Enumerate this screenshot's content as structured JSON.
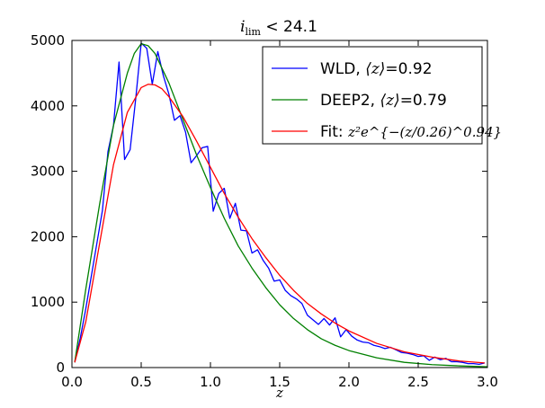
{
  "chart_data": {
    "type": "line",
    "title": {
      "math": "i",
      "math_sub": "lim",
      "op": " < ",
      "value": "24.1"
    },
    "xlabel": "z",
    "ylabel": "",
    "xlim": [
      0.0,
      3.0
    ],
    "ylim": [
      0,
      5000
    ],
    "xticks": [
      "0.0",
      "0.5",
      "1.0",
      "1.5",
      "2.0",
      "2.5",
      "3.0"
    ],
    "yticks": [
      "0",
      "1000",
      "2000",
      "3000",
      "4000",
      "5000"
    ],
    "legend_position": "top-right",
    "series": [
      {
        "name": "WLD",
        "legend_prefix": "WLD, ",
        "legend_math": "⟨z⟩",
        "legend_suffix": "=0.92",
        "color": "#0000ff",
        "x": [
          0.02,
          0.06,
          0.1,
          0.14,
          0.18,
          0.22,
          0.26,
          0.3,
          0.34,
          0.38,
          0.42,
          0.46,
          0.5,
          0.54,
          0.58,
          0.62,
          0.66,
          0.7,
          0.74,
          0.78,
          0.82,
          0.86,
          0.9,
          0.94,
          0.98,
          1.02,
          1.06,
          1.1,
          1.14,
          1.18,
          1.22,
          1.26,
          1.3,
          1.34,
          1.38,
          1.42,
          1.46,
          1.5,
          1.54,
          1.58,
          1.62,
          1.66,
          1.7,
          1.74,
          1.78,
          1.82,
          1.86,
          1.9,
          1.94,
          1.98,
          2.02,
          2.06,
          2.1,
          2.14,
          2.18,
          2.22,
          2.26,
          2.3,
          2.34,
          2.38,
          2.42,
          2.46,
          2.5,
          2.54,
          2.58,
          2.62,
          2.66,
          2.7,
          2.74,
          2.78,
          2.82,
          2.86,
          2.9,
          2.94,
          2.98
        ],
        "values": [
          80,
          450,
          900,
          1400,
          1900,
          2400,
          3300,
          3700,
          4670,
          3180,
          3330,
          4100,
          4960,
          4880,
          4330,
          4830,
          4460,
          4180,
          3780,
          3850,
          3600,
          3130,
          3240,
          3360,
          3380,
          2390,
          2660,
          2740,
          2280,
          2510,
          2100,
          2090,
          1750,
          1800,
          1640,
          1520,
          1320,
          1340,
          1180,
          1100,
          1050,
          980,
          800,
          730,
          660,
          750,
          650,
          760,
          470,
          580,
          480,
          420,
          390,
          380,
          340,
          320,
          290,
          310,
          270,
          230,
          220,
          200,
          170,
          180,
          110,
          160,
          120,
          140,
          90,
          90,
          80,
          60,
          60,
          50,
          70
        ]
      },
      {
        "name": "DEEP2",
        "legend_prefix": "DEEP2, ",
        "legend_math": "⟨z⟩",
        "legend_suffix": "=0.79",
        "color": "#008000",
        "x": [
          0.02,
          0.1,
          0.2,
          0.3,
          0.4,
          0.45,
          0.5,
          0.55,
          0.6,
          0.7,
          0.8,
          0.9,
          1.0,
          1.1,
          1.2,
          1.3,
          1.4,
          1.5,
          1.6,
          1.7,
          1.8,
          1.9,
          2.0,
          2.2,
          2.4,
          2.6,
          2.8,
          3.0
        ],
        "values": [
          80,
          1200,
          2500,
          3700,
          4500,
          4800,
          4950,
          4920,
          4800,
          4350,
          3800,
          3250,
          2750,
          2280,
          1860,
          1520,
          1220,
          960,
          750,
          580,
          440,
          340,
          260,
          150,
          80,
          45,
          25,
          12
        ]
      },
      {
        "name": "Fit",
        "legend_prefix": "Fit: ",
        "legend_math": "z²e^{−(z/0.26)^0.94}",
        "legend_suffix": "",
        "color": "#ff0000",
        "x": [
          0.02,
          0.1,
          0.2,
          0.3,
          0.4,
          0.5,
          0.55,
          0.6,
          0.65,
          0.7,
          0.8,
          0.9,
          1.0,
          1.1,
          1.2,
          1.3,
          1.4,
          1.5,
          1.6,
          1.7,
          1.8,
          1.9,
          2.0,
          2.2,
          2.4,
          2.6,
          2.8,
          2.98
        ],
        "values": [
          80,
          700,
          1900,
          3100,
          3900,
          4280,
          4330,
          4320,
          4260,
          4140,
          3840,
          3460,
          3060,
          2660,
          2300,
          1970,
          1680,
          1410,
          1180,
          980,
          820,
          680,
          560,
          370,
          240,
          160,
          100,
          70
        ]
      }
    ]
  }
}
